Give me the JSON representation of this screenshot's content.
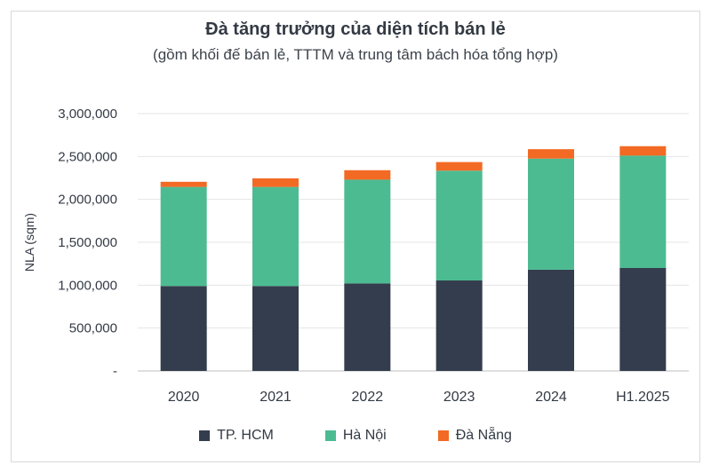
{
  "chart_data": {
    "type": "bar",
    "stacked": true,
    "title": "Đà tăng trưởng của diện tích bán lẻ",
    "subtitle": "(gồm khối đế bán lẻ, TTTM và trung tâm bách hóa tổng hợp)",
    "ylabel": "NLA (sqm)",
    "xlabel": "",
    "ylim": [
      0,
      3000000
    ],
    "yticks": [
      "-",
      "500,000",
      "1,000,000",
      "1,500,000",
      "2,000,000",
      "2,500,000",
      "3,000,000"
    ],
    "grid": true,
    "legend_position": "bottom",
    "categories": [
      "2020",
      "2021",
      "2022",
      "2023",
      "2024",
      "H1.2025"
    ],
    "series": [
      {
        "name": "TP. HCM",
        "color": "#333d4d",
        "values": [
          990000,
          990000,
          1020000,
          1055000,
          1180000,
          1200000
        ]
      },
      {
        "name": "Hà Nội",
        "color": "#4dbb92",
        "values": [
          1155000,
          1155000,
          1210000,
          1280000,
          1295000,
          1310000
        ]
      },
      {
        "name": "Đà Nẵng",
        "color": "#f26a24",
        "values": [
          60000,
          100000,
          110000,
          100000,
          110000,
          110000
        ]
      }
    ]
  }
}
